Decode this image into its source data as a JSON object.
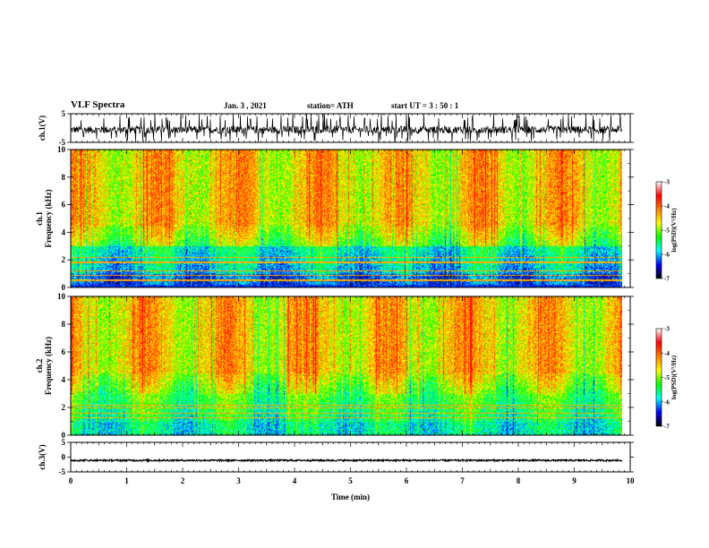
{
  "header": {
    "title": "VLF Spectra",
    "date": "Jan. 3 , 2021",
    "station": "station= ATH",
    "start_ut": "start UT = 3 : 50 : 1"
  },
  "colors": {
    "waveform": "#000000",
    "colormap": [
      "#000000",
      "#0000ff",
      "#00ffff",
      "#00ff00",
      "#ffff00",
      "#ff7f00",
      "#ff0000",
      "#ffffff"
    ]
  },
  "chart_data": [
    {
      "type": "line",
      "ylabel": "ch.1(V)",
      "ylim": [
        -5,
        5
      ],
      "y_ticks": [
        "5",
        "-5"
      ],
      "x_range_min": [
        0,
        10
      ],
      "note": "waveform amplitude mostly between -2 and 2 V with frequent spikes to ±5"
    },
    {
      "type": "heatmap",
      "ylabel": "ch.1 Frequency (kHz)",
      "ylabel_line1": "ch.1",
      "ylabel_line2": "Frequency (kHz)",
      "ylim": [
        0,
        10
      ],
      "y_ticks": [
        "0",
        "2",
        "4",
        "6",
        "8",
        "10"
      ],
      "x_range_min": [
        0,
        10
      ],
      "data_extent_min": [
        0,
        9.85
      ],
      "colorbar": {
        "label": "log(PSD)(V²/Hz)",
        "range": [
          -7,
          -3
        ],
        "ticks": [
          "-3",
          "-4",
          "-5",
          "-6",
          "-7"
        ]
      }
    },
    {
      "type": "heatmap",
      "ylabel": "ch.2 Frequency (kHz)",
      "ylabel_line1": "ch.2",
      "ylabel_line2": "Frequency (kHz)",
      "ylim": [
        0,
        10
      ],
      "y_ticks": [
        "0",
        "2",
        "4",
        "6",
        "8",
        "10"
      ],
      "x_range_min": [
        0,
        10
      ],
      "data_extent_min": [
        0,
        9.85
      ],
      "colorbar": {
        "label": "log(PSD)(V²/Hz)",
        "range": [
          -7,
          -3
        ],
        "ticks": [
          "-3",
          "-4",
          "-5",
          "-6",
          "-7"
        ]
      }
    },
    {
      "type": "line",
      "ylabel": "ch.3(V)",
      "ylim": [
        -5,
        5
      ],
      "y_ticks": [
        "5",
        "0",
        "-5"
      ],
      "x_range_min": [
        0,
        10
      ],
      "note": "nearly constant near -1 V"
    }
  ],
  "x_axis": {
    "label": "Time (min)",
    "ticks": [
      "0",
      "1",
      "2",
      "3",
      "4",
      "5",
      "6",
      "7",
      "8",
      "9",
      "10"
    ]
  }
}
